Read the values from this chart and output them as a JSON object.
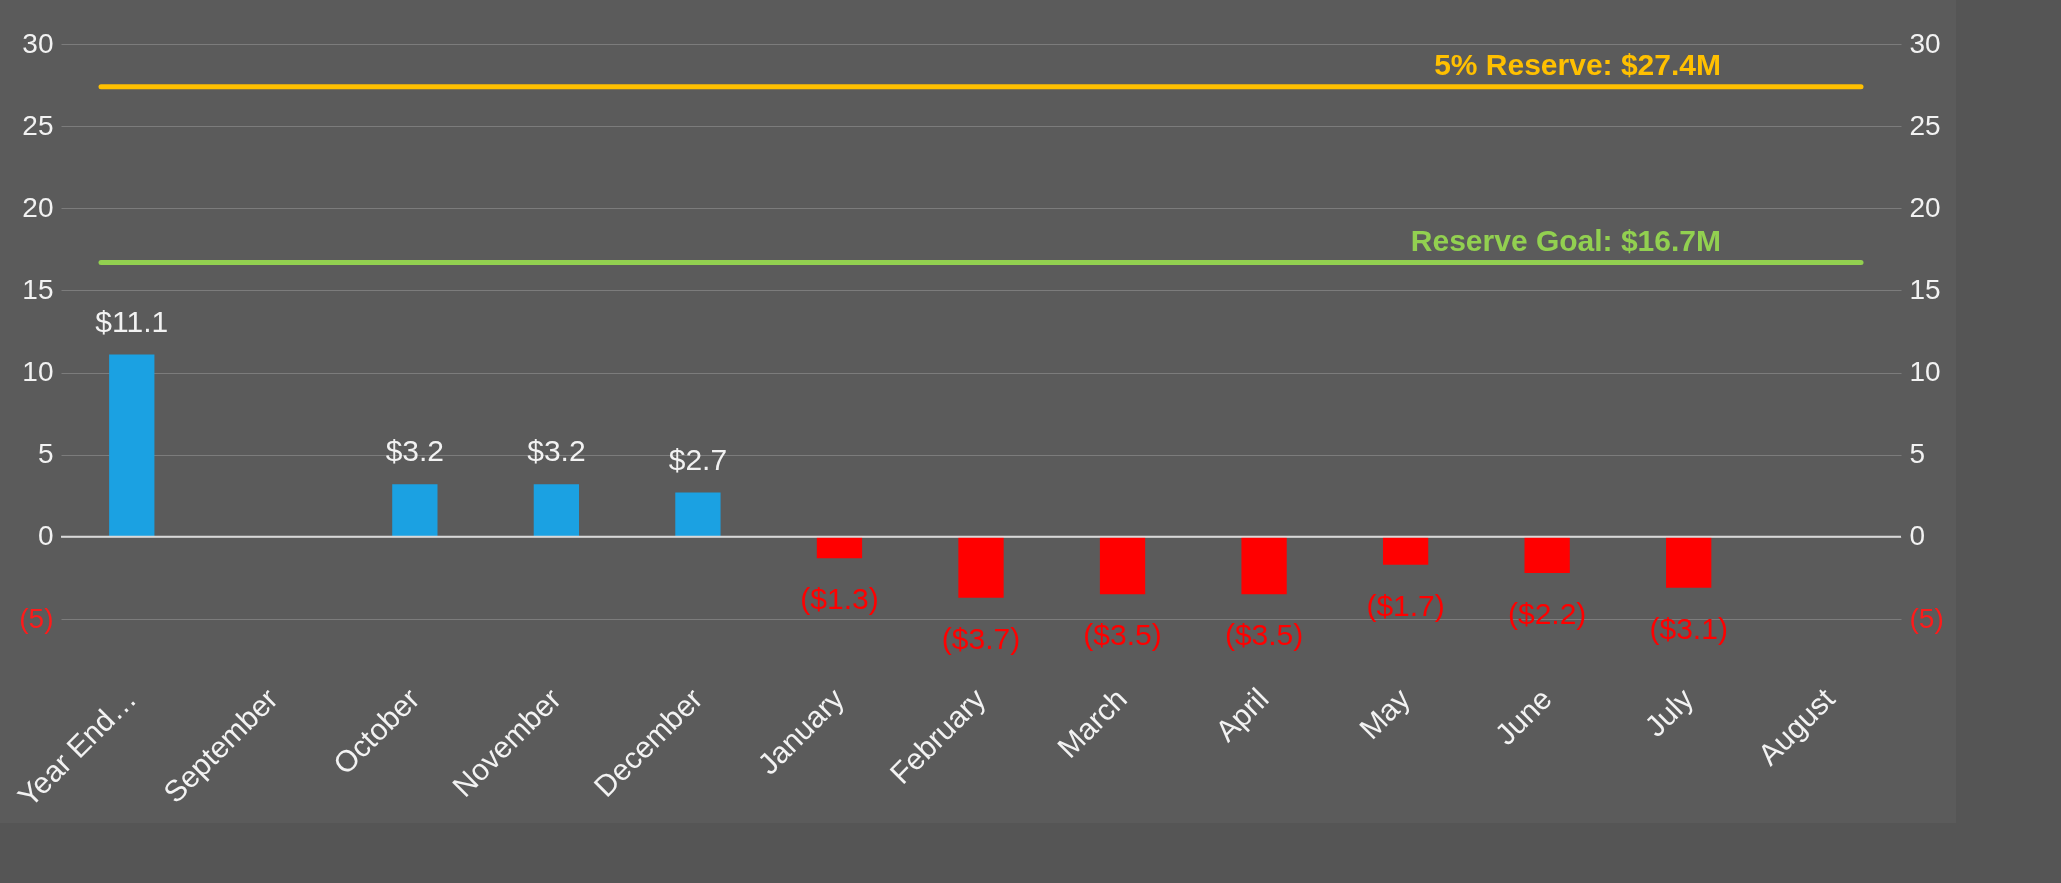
{
  "chart_data": {
    "type": "bar",
    "categories": [
      "Year End…",
      "September",
      "October",
      "November",
      "December",
      "January",
      "February",
      "March",
      "April",
      "May",
      "June",
      "July",
      "August"
    ],
    "values": [
      11.1,
      null,
      3.2,
      3.2,
      2.7,
      -1.3,
      -3.7,
      -3.5,
      -3.5,
      -1.7,
      -2.2,
      -3.1,
      null
    ],
    "colors": [
      "#1ba1e2",
      null,
      "#1ba1e2",
      "#1ba1e2",
      "#1ba1e2",
      "#ff0000",
      "#ff0000",
      "#ff0000",
      "#ff0000",
      "#ff0000",
      "#ff0000",
      "#ff0000",
      null
    ],
    "value_labels": [
      "$11.1",
      null,
      "$3.2",
      "$3.2",
      "$2.7",
      "($1.3)",
      "($3.7)",
      "($3.5)",
      "($3.5)",
      "($1.7)",
      "($2.2)",
      "($3.1)",
      null
    ],
    "ylim": [
      -5,
      30
    ],
    "yticks": [
      {
        "value": -5,
        "label": "(5)"
      },
      0,
      5,
      10,
      15,
      20,
      25,
      30
    ],
    "y2lim": [
      -5,
      30
    ],
    "y2ticks": [
      {
        "value": -5,
        "label": "(5)"
      },
      0,
      5,
      10,
      15,
      20,
      25,
      30
    ],
    "grid": "y",
    "ref_lines": [
      {
        "axis": "y",
        "value": 27.4,
        "label": "5% Reserve: $27.4M",
        "color": "#ffc000"
      },
      {
        "axis": "y",
        "value": 16.7,
        "label": "Reserve Goal: $16.7M",
        "color": "#92d050"
      }
    ]
  }
}
